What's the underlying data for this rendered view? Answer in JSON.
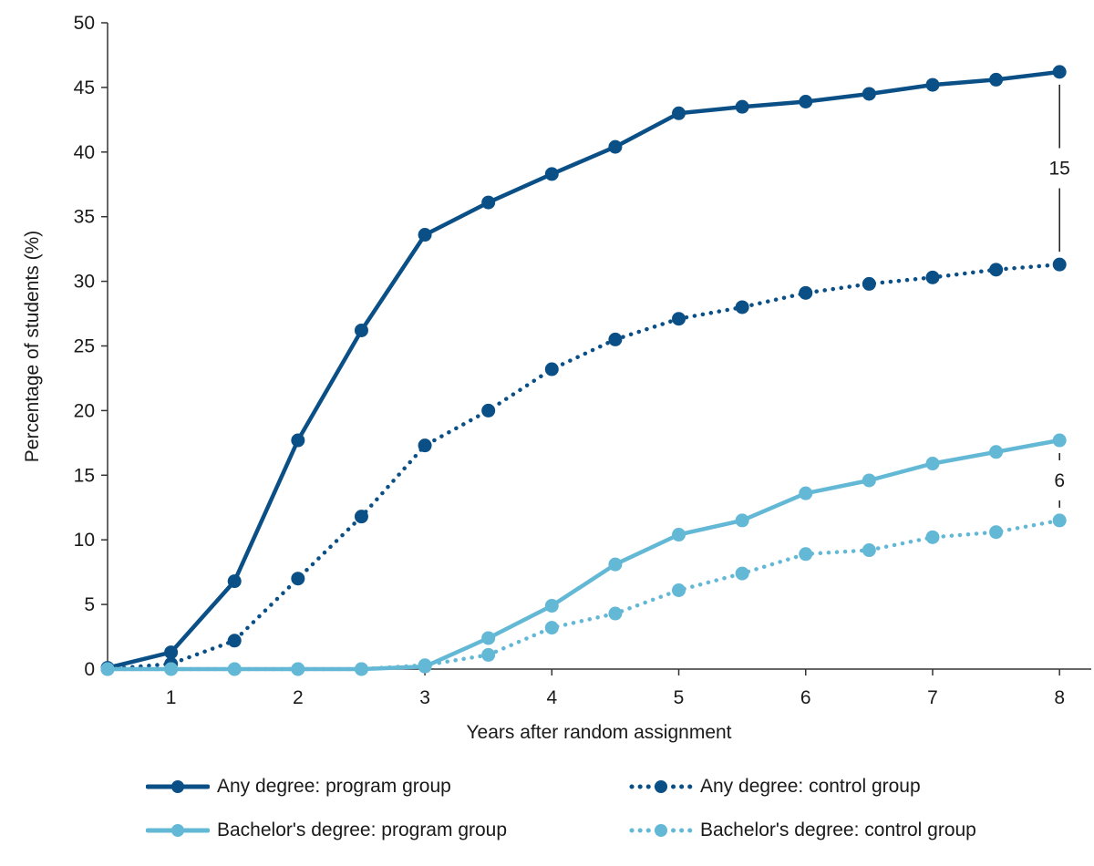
{
  "chart_data": {
    "type": "line",
    "title": "",
    "xlabel": "Years after random assignment",
    "ylabel": "Percentage of students (%)",
    "xlim": [
      0.5,
      8.25
    ],
    "ylim": [
      0,
      50
    ],
    "xticks": [
      1,
      2,
      3,
      4,
      5,
      6,
      7,
      8
    ],
    "yticks": [
      0,
      5,
      10,
      15,
      20,
      25,
      30,
      35,
      40,
      45,
      50
    ],
    "grid": false,
    "legend_position": "bottom",
    "x": [
      0.5,
      1,
      1.5,
      2,
      2.5,
      3,
      3.5,
      4,
      4.5,
      5,
      5.5,
      6,
      6.5,
      7,
      7.5,
      8
    ],
    "series": [
      {
        "name": "Any degree: program group",
        "style": "solid",
        "color": "#0a4f86",
        "values": [
          0.1,
          1.3,
          6.8,
          17.7,
          26.2,
          33.6,
          36.1,
          38.3,
          40.4,
          43.0,
          43.5,
          43.9,
          44.5,
          45.2,
          45.6,
          46.2
        ]
      },
      {
        "name": "Any degree: control group",
        "style": "dotted",
        "color": "#0a4f86",
        "values": [
          0.0,
          0.4,
          2.2,
          7.0,
          11.8,
          17.3,
          20.0,
          23.2,
          25.5,
          27.1,
          28.0,
          29.1,
          29.8,
          30.3,
          30.9,
          31.3
        ]
      },
      {
        "name": "Bachelor's degree: program group",
        "style": "solid",
        "color": "#63b8d6",
        "values": [
          0.0,
          0.0,
          0.0,
          0.0,
          0.0,
          0.2,
          2.4,
          4.9,
          8.1,
          10.4,
          11.5,
          13.6,
          14.6,
          15.9,
          16.8,
          17.7
        ]
      },
      {
        "name": "Bachelor's degree: control group",
        "style": "dotted",
        "color": "#63b8d6",
        "values": [
          0.0,
          0.0,
          0.0,
          0.0,
          0.0,
          0.3,
          1.1,
          3.2,
          4.3,
          6.1,
          7.4,
          8.9,
          9.2,
          10.2,
          10.6,
          11.5
        ]
      }
    ],
    "annotations": [
      {
        "label": "15",
        "x": 8,
        "from": 31.3,
        "to": 46.2
      },
      {
        "label": "6",
        "x": 8,
        "from": 11.5,
        "to": 17.7
      }
    ]
  }
}
